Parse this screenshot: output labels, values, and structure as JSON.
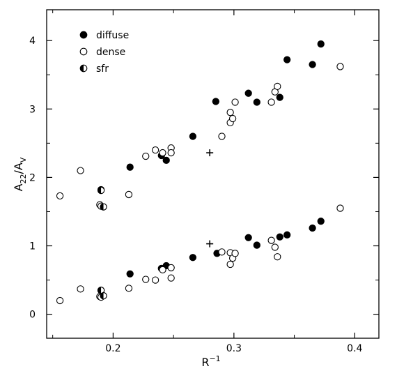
{
  "chart_data": {
    "type": "scatter",
    "title": "",
    "xlabel": "R",
    "xlabel_sup": "−1",
    "ylabel": "A",
    "ylabel_sub": "22",
    "ylabel_rest": "/A",
    "ylabel_sub2": "V",
    "xlim": [
      0.145,
      0.42
    ],
    "ylim": [
      -0.35,
      4.45
    ],
    "x_ticks": [
      {
        "value": 0.2,
        "label": "0.2"
      },
      {
        "value": 0.3,
        "label": "0.3"
      },
      {
        "value": 0.4,
        "label": "0.4"
      }
    ],
    "y_ticks": [
      {
        "value": 0,
        "label": "0"
      },
      {
        "value": 1,
        "label": "1"
      },
      {
        "value": 2,
        "label": "2"
      },
      {
        "value": 3,
        "label": "3"
      },
      {
        "value": 4,
        "label": "4"
      }
    ],
    "grid": false,
    "legend_position": "top-left",
    "series": [
      {
        "name": "diffuse",
        "marker": "filled",
        "points": [
          [
            0.214,
            2.15
          ],
          [
            0.24,
            2.32
          ],
          [
            0.244,
            2.25
          ],
          [
            0.266,
            2.6
          ],
          [
            0.285,
            3.11
          ],
          [
            0.312,
            3.23
          ],
          [
            0.319,
            3.1
          ],
          [
            0.338,
            3.17
          ],
          [
            0.344,
            3.72
          ],
          [
            0.365,
            3.65
          ],
          [
            0.372,
            3.95
          ],
          [
            0.19,
            1.82
          ],
          [
            0.192,
            1.57
          ],
          [
            0.214,
            0.59
          ],
          [
            0.24,
            0.67
          ],
          [
            0.244,
            0.71
          ],
          [
            0.266,
            0.83
          ],
          [
            0.286,
            0.89
          ],
          [
            0.312,
            1.12
          ],
          [
            0.319,
            1.01
          ],
          [
            0.338,
            1.13
          ],
          [
            0.344,
            1.16
          ],
          [
            0.365,
            1.26
          ],
          [
            0.372,
            1.36
          ],
          [
            0.19,
            0.35
          ],
          [
            0.192,
            0.27
          ]
        ]
      },
      {
        "name": "dense",
        "marker": "open",
        "points": [
          [
            0.156,
            1.73
          ],
          [
            0.173,
            2.1
          ],
          [
            0.213,
            1.75
          ],
          [
            0.227,
            2.31
          ],
          [
            0.235,
            2.4
          ],
          [
            0.241,
            2.36
          ],
          [
            0.248,
            2.43
          ],
          [
            0.248,
            2.36
          ],
          [
            0.29,
            2.6
          ],
          [
            0.297,
            2.8
          ],
          [
            0.297,
            2.95
          ],
          [
            0.299,
            2.86
          ],
          [
            0.301,
            3.1
          ],
          [
            0.331,
            3.1
          ],
          [
            0.334,
            3.25
          ],
          [
            0.336,
            3.33
          ],
          [
            0.388,
            3.62
          ],
          [
            0.189,
            1.6
          ],
          [
            0.19,
            1.58
          ],
          [
            0.156,
            0.2
          ],
          [
            0.173,
            0.37
          ],
          [
            0.213,
            0.38
          ],
          [
            0.227,
            0.51
          ],
          [
            0.235,
            0.5
          ],
          [
            0.241,
            0.65
          ],
          [
            0.248,
            0.68
          ],
          [
            0.248,
            0.53
          ],
          [
            0.29,
            0.91
          ],
          [
            0.297,
            0.73
          ],
          [
            0.297,
            0.9
          ],
          [
            0.299,
            0.82
          ],
          [
            0.301,
            0.89
          ],
          [
            0.331,
            1.08
          ],
          [
            0.334,
            0.98
          ],
          [
            0.336,
            0.84
          ],
          [
            0.388,
            1.55
          ],
          [
            0.189,
            0.26
          ],
          [
            0.19,
            0.25
          ]
        ]
      },
      {
        "name": "sfr",
        "marker": "half",
        "points": [
          [
            0.19,
            1.81
          ],
          [
            0.192,
            1.57
          ],
          [
            0.19,
            0.35
          ],
          [
            0.192,
            0.27
          ]
        ]
      },
      {
        "name": "",
        "marker": "cross",
        "points": [
          [
            0.28,
            2.36
          ],
          [
            0.28,
            1.03
          ]
        ]
      }
    ]
  }
}
